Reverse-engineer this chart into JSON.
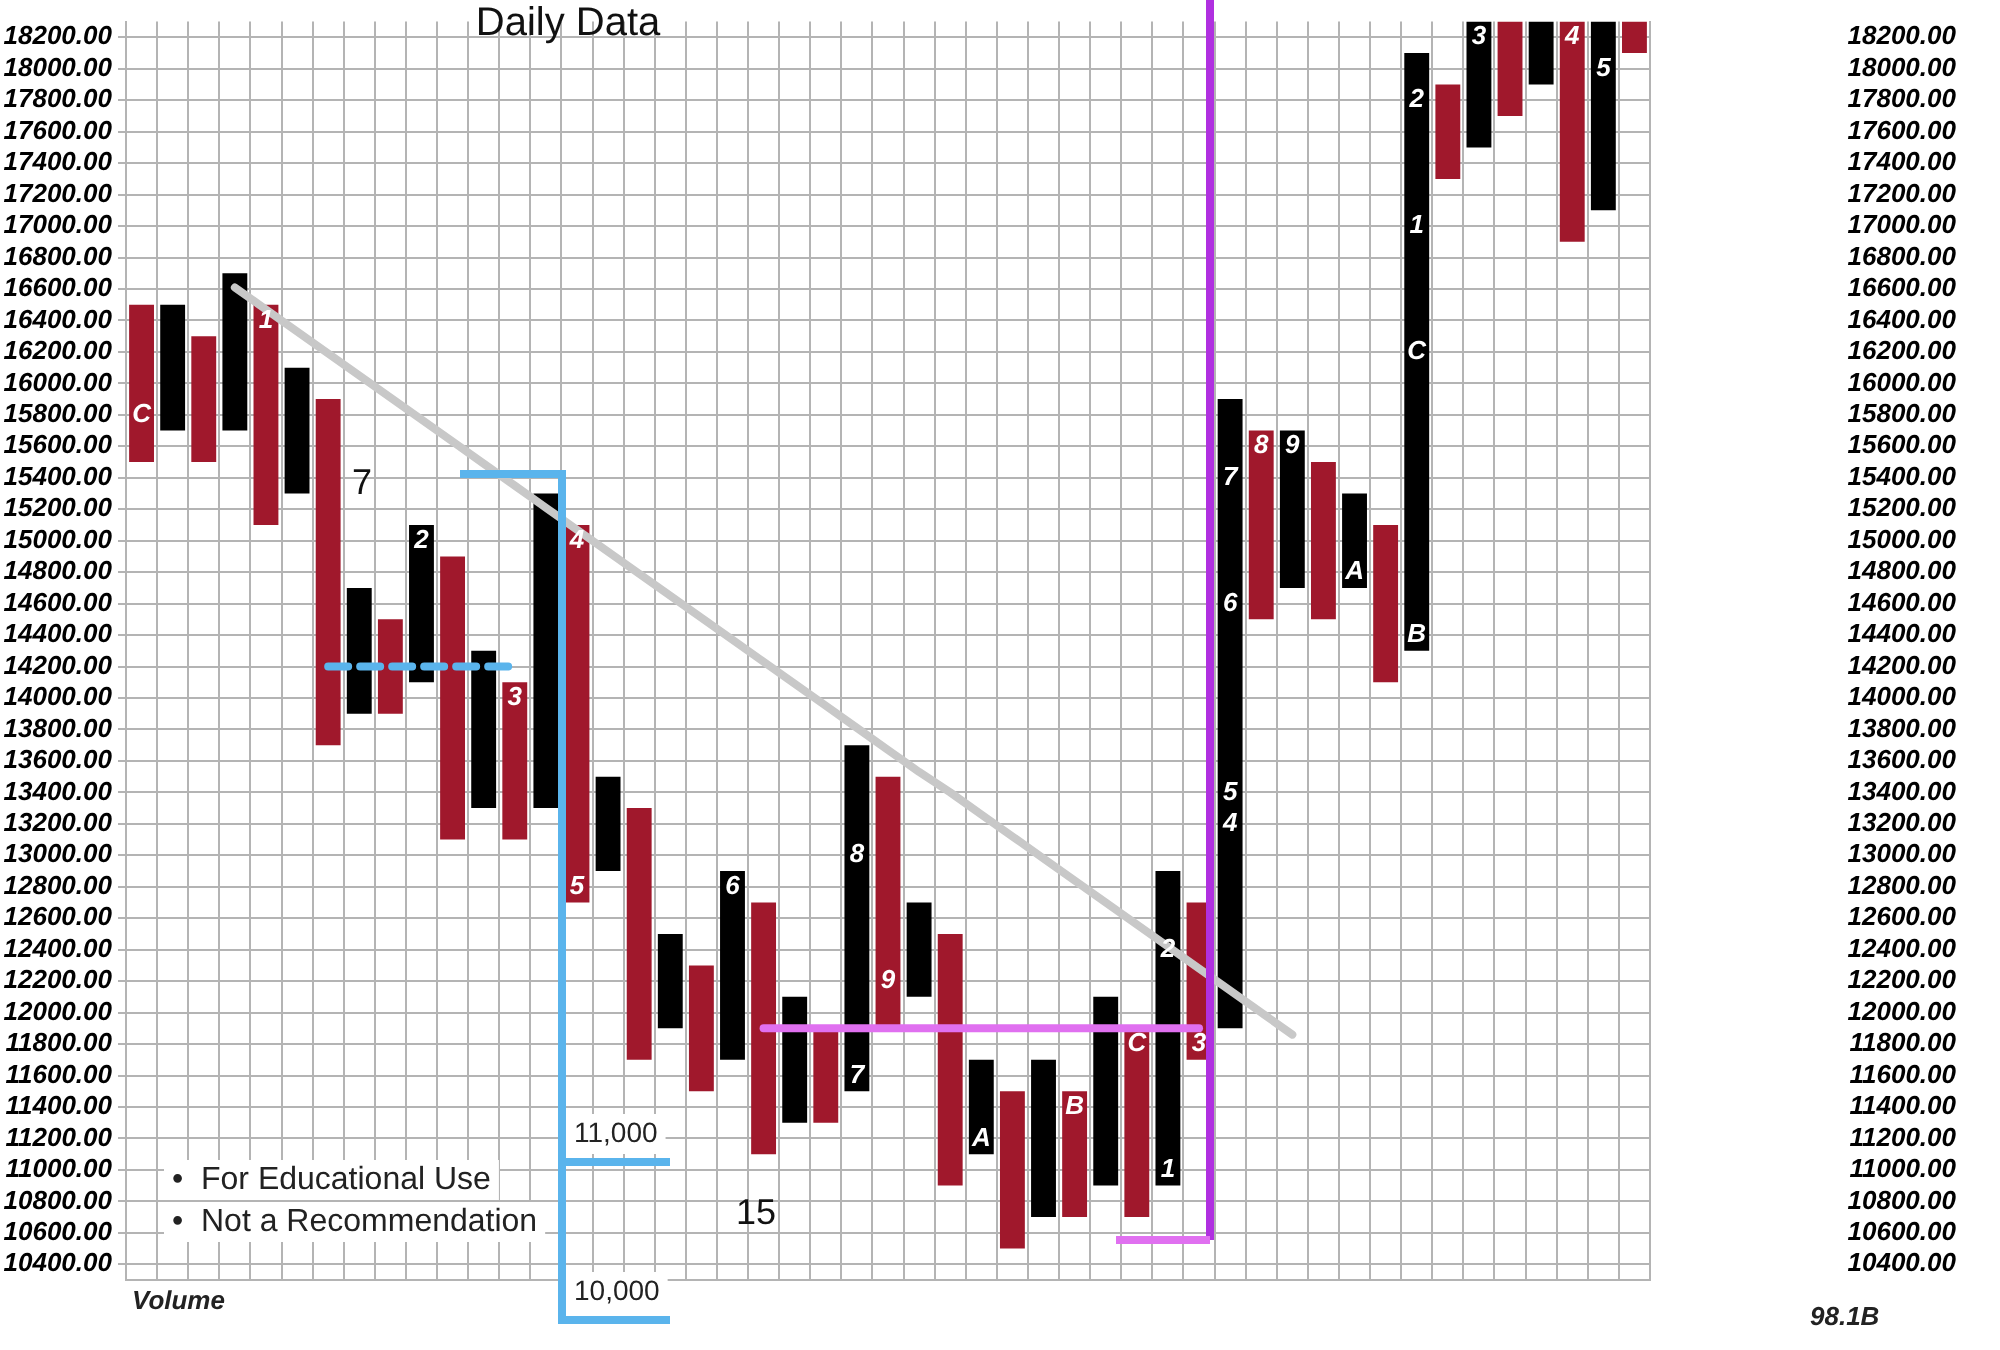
{
  "chart_data": {
    "type": "bar",
    "title": "Daily Data",
    "categories": [
      null,
      null,
      null,
      null,
      null,
      null,
      null,
      null,
      null,
      null,
      null,
      null,
      null,
      null,
      null,
      null,
      null,
      null,
      null,
      null,
      null,
      null,
      null,
      null,
      null,
      null,
      null,
      null,
      null,
      null,
      null,
      null,
      null,
      null,
      null,
      null,
      null,
      null,
      null,
      null,
      null,
      null,
      null,
      null,
      null,
      null,
      null,
      null,
      null
    ],
    "series": [
      {
        "base": [
          15500,
          15700,
          15500,
          15700,
          15100,
          15300,
          13700,
          13900,
          13900,
          14100,
          13100,
          13300,
          13100,
          13300,
          12700,
          12900,
          11700,
          11900,
          11500,
          11700,
          11100,
          11300,
          11300,
          11500,
          11900,
          12100,
          10900,
          11100,
          10500,
          10700,
          10700,
          10900,
          10700,
          10900,
          11700,
          11900,
          14500,
          14700,
          14500,
          14700,
          14100,
          14300,
          17300,
          17500,
          17700,
          17900,
          16900,
          17100,
          18100
        ],
        "values": [
          1000,
          800,
          800,
          1000,
          1400,
          800,
          2200,
          800,
          600,
          1000,
          1800,
          1000,
          1000,
          2000,
          2400,
          600,
          1600,
          600,
          800,
          1200,
          1600,
          800,
          600,
          2200,
          1600,
          600,
          1600,
          600,
          1000,
          1000,
          800,
          1200,
          1200,
          2000,
          1000,
          4000,
          1200,
          1000,
          1000,
          600,
          1000,
          3800,
          600,
          800,
          600,
          400,
          1400,
          1200,
          200
        ],
        "colors": [
          "#a0182c",
          "#000000",
          "#a0182c",
          "#000000",
          "#a0182c",
          "#000000",
          "#a0182c",
          "#000000",
          "#a0182c",
          "#000000",
          "#a0182c",
          "#000000",
          "#a0182c",
          "#000000",
          "#a0182c",
          "#000000",
          "#a0182c",
          "#000000",
          "#a0182c",
          "#000000",
          "#a0182c",
          "#000000",
          "#a0182c",
          "#000000",
          "#a0182c",
          "#000000",
          "#a0182c",
          "#000000",
          "#a0182c",
          "#000000",
          "#a0182c",
          "#000000",
          "#a0182c",
          "#000000",
          "#a0182c",
          "#000000",
          "#a0182c",
          "#000000",
          "#a0182c",
          "#000000",
          "#a0182c",
          "#000000",
          "#a0182c",
          "#000000",
          "#a0182c",
          "#000000",
          "#a0182c",
          "#000000",
          "#a0182c"
        ]
      },
      {
        "type": "line",
        "color": "#c8c8c8",
        "values": [
          null,
          null,
          null,
          16610,
          16470,
          16330,
          16190,
          16050,
          15910,
          15770,
          15630,
          15490,
          15350,
          15210,
          15070,
          14930,
          14790,
          14650,
          14510,
          14370,
          14230,
          14090,
          13950,
          13810,
          13670,
          13530,
          13400,
          13260,
          13120,
          12980,
          12840,
          12700,
          12560,
          12420,
          12280,
          12140,
          12000,
          11860,
          null,
          null,
          null,
          null,
          null,
          null,
          null,
          null,
          null,
          null,
          null
        ]
      },
      {
        "type": "line",
        "color": "#5ab4ec",
        "line_style": "dashed",
        "values": [
          null,
          null,
          null,
          null,
          null,
          null,
          14200,
          14200,
          14200,
          14200,
          14200,
          14200,
          14200,
          null,
          null,
          null,
          null,
          null,
          null,
          null,
          null,
          null,
          null,
          null,
          null,
          null,
          null,
          null,
          null,
          null,
          null,
          null,
          null,
          null,
          null,
          null,
          null,
          null,
          null,
          null,
          null,
          null,
          null,
          null,
          null,
          null,
          null,
          null,
          null
        ]
      },
      {
        "type": "line",
        "color": "#e070f0",
        "values": [
          null,
          null,
          null,
          null,
          null,
          null,
          null,
          null,
          null,
          null,
          null,
          null,
          null,
          null,
          null,
          null,
          null,
          null,
          null,
          null,
          11900,
          11900,
          11900,
          11900,
          11900,
          11900,
          11900,
          11900,
          11900,
          11900,
          11900,
          11900,
          11900,
          11900,
          11900,
          null,
          null,
          null,
          null,
          null,
          null,
          null,
          null,
          null,
          null,
          null,
          null,
          null,
          null
        ]
      }
    ],
    "ylim": [
      10300,
      18300
    ],
    "yticks": [
      {
        "value": 10400,
        "label": "10400.00"
      },
      {
        "value": 10600,
        "label": "10600.00"
      },
      {
        "value": 10800,
        "label": "10800.00"
      },
      {
        "value": 11000,
        "label": "11000.00"
      },
      {
        "value": 11200,
        "label": "11200.00"
      },
      {
        "value": 11400,
        "label": "11400.00"
      },
      {
        "value": 11600,
        "label": "11600.00"
      },
      {
        "value": 11800,
        "label": "11800.00"
      },
      {
        "value": 12000,
        "label": "12000.00"
      },
      {
        "value": 12200,
        "label": "12200.00"
      },
      {
        "value": 12400,
        "label": "12400.00"
      },
      {
        "value": 12600,
        "label": "12600.00"
      },
      {
        "value": 12800,
        "label": "12800.00"
      },
      {
        "value": 13000,
        "label": "13000.00"
      },
      {
        "value": 13200,
        "label": "13200.00"
      },
      {
        "value": 13400,
        "label": "13400.00"
      },
      {
        "value": 13600,
        "label": "13600.00"
      },
      {
        "value": 13800,
        "label": "13800.00"
      },
      {
        "value": 14000,
        "label": "14000.00"
      },
      {
        "value": 14200,
        "label": "14200.00"
      },
      {
        "value": 14400,
        "label": "14400.00"
      },
      {
        "value": 14600,
        "label": "14600.00"
      },
      {
        "value": 14800,
        "label": "14800.00"
      },
      {
        "value": 15000,
        "label": "15000.00"
      },
      {
        "value": 15200,
        "label": "15200.00"
      },
      {
        "value": 15400,
        "label": "15400.00"
      },
      {
        "value": 15600,
        "label": "15600.00"
      },
      {
        "value": 15800,
        "label": "15800.00"
      },
      {
        "value": 16000,
        "label": "16000.00"
      },
      {
        "value": 16200,
        "label": "16200.00"
      },
      {
        "value": 16400,
        "label": "16400.00"
      },
      {
        "value": 16600,
        "label": "16600.00"
      },
      {
        "value": 16800,
        "label": "16800.00"
      },
      {
        "value": 17000,
        "label": "17000.00"
      },
      {
        "value": 17200,
        "label": "17200.00"
      },
      {
        "value": 17400,
        "label": "17400.00"
      },
      {
        "value": 17600,
        "label": "17600.00"
      },
      {
        "value": 17800,
        "label": "17800.00"
      },
      {
        "value": 18000,
        "label": "18000.00"
      },
      {
        "value": 18200,
        "label": "18200.00"
      }
    ],
    "y2lim": [
      10300,
      18300
    ],
    "y2ticks": [
      {
        "value": 10400,
        "label": "10400.00"
      },
      {
        "value": 10600,
        "label": "10600.00"
      },
      {
        "value": 10800,
        "label": "10800.00"
      },
      {
        "value": 11000,
        "label": "11000.00"
      },
      {
        "value": 11200,
        "label": "11200.00"
      },
      {
        "value": 11400,
        "label": "11400.00"
      },
      {
        "value": 11600,
        "label": "11600.00"
      },
      {
        "value": 11800,
        "label": "11800.00"
      },
      {
        "value": 12000,
        "label": "12000.00"
      },
      {
        "value": 12200,
        "label": "12200.00"
      },
      {
        "value": 12400,
        "label": "12400.00"
      },
      {
        "value": 12600,
        "label": "12600.00"
      },
      {
        "value": 12800,
        "label": "12800.00"
      },
      {
        "value": 13000,
        "label": "13000.00"
      },
      {
        "value": 13200,
        "label": "13200.00"
      },
      {
        "value": 13400,
        "label": "13400.00"
      },
      {
        "value": 13600,
        "label": "13600.00"
      },
      {
        "value": 13800,
        "label": "13800.00"
      },
      {
        "value": 14000,
        "label": "14000.00"
      },
      {
        "value": 14200,
        "label": "14200.00"
      },
      {
        "value": 14400,
        "label": "14400.00"
      },
      {
        "value": 14600,
        "label": "14600.00"
      },
      {
        "value": 14800,
        "label": "14800.00"
      },
      {
        "value": 15000,
        "label": "15000.00"
      },
      {
        "value": 15200,
        "label": "15200.00"
      },
      {
        "value": 15400,
        "label": "15400.00"
      },
      {
        "value": 15600,
        "label": "15600.00"
      },
      {
        "value": 15800,
        "label": "15800.00"
      },
      {
        "value": 16000,
        "label": "16000.00"
      },
      {
        "value": 16200,
        "label": "16200.00"
      },
      {
        "value": 16400,
        "label": "16400.00"
      },
      {
        "value": 16600,
        "label": "16600.00"
      },
      {
        "value": 16800,
        "label": "16800.00"
      },
      {
        "value": 17000,
        "label": "17000.00"
      },
      {
        "value": 17200,
        "label": "17200.00"
      },
      {
        "value": 17400,
        "label": "17400.00"
      },
      {
        "value": 17600,
        "label": "17600.00"
      },
      {
        "value": 17800,
        "label": "17800.00"
      },
      {
        "value": 18000,
        "label": "18000.00"
      },
      {
        "value": 18200,
        "label": "18200.00"
      }
    ],
    "grid": true,
    "tick_labels": "y",
    "annotations": [
      "C",
      "1",
      "2",
      "3",
      "4",
      "5",
      "6",
      "8",
      "7",
      "9",
      "A",
      "B",
      "C",
      "2",
      "1",
      "3",
      "4",
      "5",
      "6",
      "7",
      "8",
      "9",
      "A",
      "B",
      "C",
      "1",
      "2",
      "3",
      "4",
      "5",
      "7",
      "15",
      "11,000",
      "•  For Educational Use",
      "•  Not a Recommendation",
      "10,000",
      "Volume",
      "98.1B"
    ]
  }
}
